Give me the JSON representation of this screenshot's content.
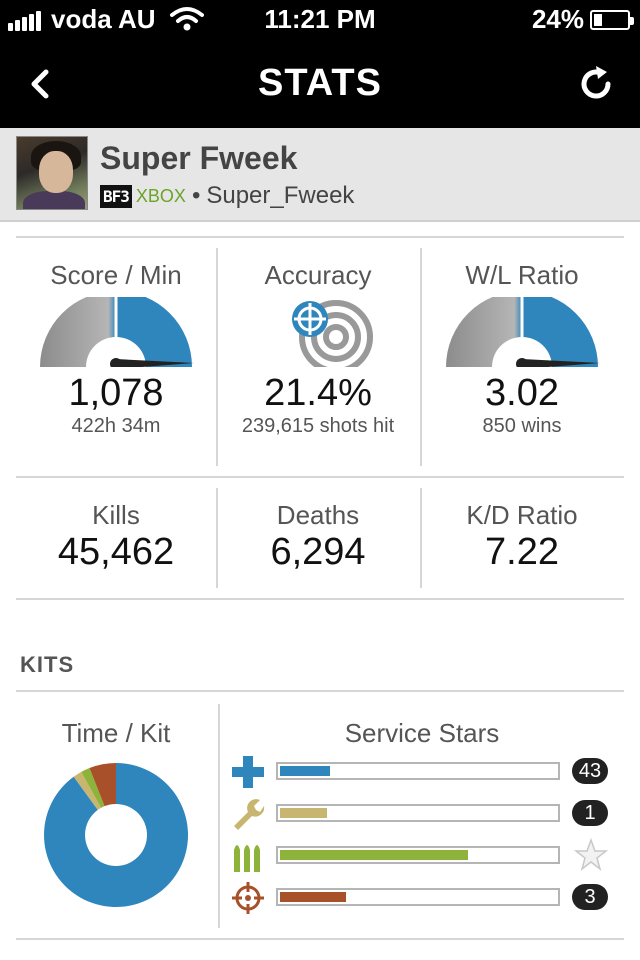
{
  "status_bar": {
    "carrier": "voda AU",
    "time": "11:21 PM",
    "battery": "24%",
    "battery_level": 0.24
  },
  "nav": {
    "title": "STATS",
    "back_icon": "chevron-left-icon",
    "refresh_icon": "refresh-icon"
  },
  "profile": {
    "name": "Super Fweek",
    "game_badge": "BF3",
    "platform": "XBOX",
    "separator": "•",
    "gamertag": "Super_Fweek"
  },
  "stats_top": [
    {
      "label": "Score / Min",
      "value": "1,078",
      "sub": "422h 34m",
      "icon": "gauge-icon"
    },
    {
      "label": "Accuracy",
      "value": "21.4%",
      "sub": "239,615 shots hit",
      "icon": "target-icon"
    },
    {
      "label": "W/L Ratio",
      "value": "3.02",
      "sub": "850 wins",
      "icon": "gauge-icon"
    }
  ],
  "stats_bottom": [
    {
      "label": "Kills",
      "value": "45,462"
    },
    {
      "label": "Deaths",
      "value": "6,294"
    },
    {
      "label": "K/D Ratio",
      "value": "7.22"
    }
  ],
  "kits": {
    "section_title": "KITS",
    "time_title": "Time / Kit",
    "stars_title": "Service Stars",
    "time_share": [
      {
        "kit": "assault",
        "fraction": 0.9,
        "color": "#2f86bd"
      },
      {
        "kit": "engineer",
        "fraction": 0.02,
        "color": "#c8b56f"
      },
      {
        "kit": "support",
        "fraction": 0.02,
        "color": "#8db33a"
      },
      {
        "kit": "recon",
        "fraction": 0.06,
        "color": "#a8502a"
      }
    ],
    "service_stars": [
      {
        "kit": "assault",
        "icon": "medic-cross-icon",
        "progress": 0.18,
        "stars": "43",
        "color": "#2f86bd"
      },
      {
        "kit": "engineer",
        "icon": "wrench-icon",
        "progress": 0.17,
        "stars": "1",
        "color": "#c8b56f"
      },
      {
        "kit": "support",
        "icon": "ammo-icon",
        "progress": 0.68,
        "stars": "",
        "color": "#8db33a"
      },
      {
        "kit": "recon",
        "icon": "crosshair-icon",
        "progress": 0.24,
        "stars": "3",
        "color": "#a8502a"
      }
    ]
  },
  "colors": {
    "accent_blue": "#2f86bd",
    "gauge_gray": "#8c8c8c",
    "header_bg": "#000000",
    "profile_bg": "#e6e6e6"
  }
}
